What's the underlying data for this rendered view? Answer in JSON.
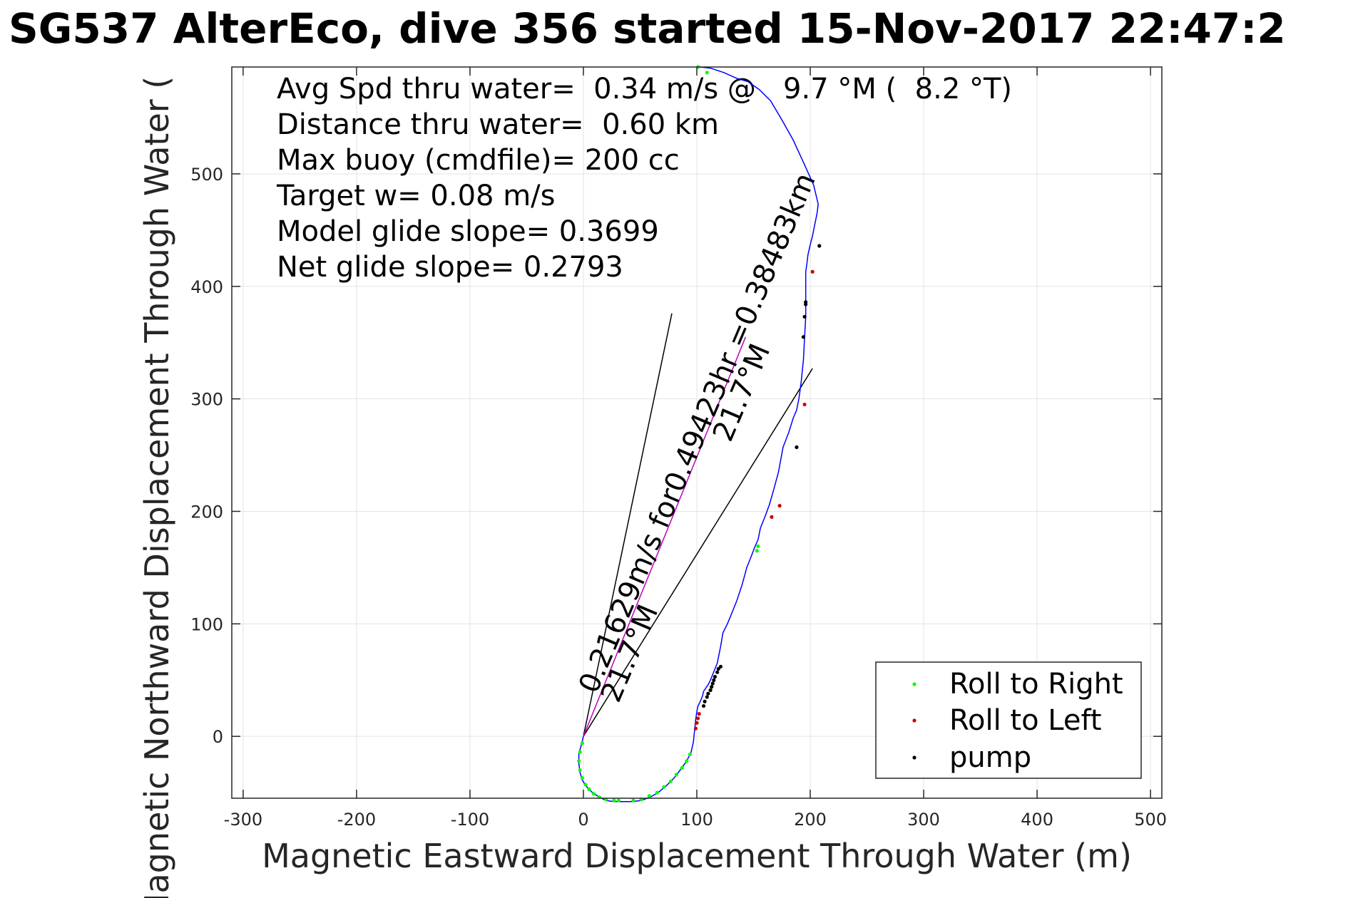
{
  "chart_data": {
    "type": "scatter",
    "title": "SG537 AlterEco, dive 356 started 15-Nov-2017 22:47:2",
    "xlabel": "Magnetic Eastward Displacement Through Water (m)",
    "ylabel": "Magnetic Northward Displacement Through Water (",
    "xlim": [
      -310,
      510
    ],
    "ylim": [
      -55,
      595
    ],
    "xticks": [
      -300,
      -200,
      -100,
      0,
      100,
      200,
      300,
      400,
      500
    ],
    "xtick_labels": [
      "-300",
      "-200",
      "-100",
      "0",
      "100",
      "200",
      "300",
      "400",
      "500"
    ],
    "yticks": [
      0,
      100,
      200,
      300,
      400,
      500
    ],
    "ytick_labels": [
      "0",
      "100",
      "200",
      "300",
      "400",
      "500"
    ],
    "grid": true,
    "legend_position": "bottom-right",
    "annotations": [
      "Avg Spd thru water=  0.34 m/s @   9.7 °M (  8.2 °T)",
      "Distance thru water=  0.60 km",
      "Max buoy (cmdfile)= 200 cc",
      "Target w= 0.08 m/s",
      "Model glide slope= 0.3699",
      "Net glide slope= 0.2793"
    ],
    "rotated_labels": {
      "current_label": "0.21629m/s for0.49423hr =0.38483km",
      "heading_upper": "21.7°M",
      "heading_lower": "21.7°M"
    },
    "current_vector": {
      "x": [
        0,
        143
      ],
      "y": [
        0,
        355
      ],
      "color": "#c000c0"
    },
    "wedge_lines": [
      {
        "x": [
          0,
          78
        ],
        "y": [
          0,
          376
        ],
        "color": "#000000"
      },
      {
        "x": [
          0,
          202
        ],
        "y": [
          0,
          327
        ],
        "color": "#000000"
      }
    ],
    "track": {
      "name": "track",
      "color": "#0000ff",
      "x": [
        0,
        -2,
        -4,
        -4,
        -3,
        -1,
        3,
        8,
        14,
        20,
        27,
        35,
        43,
        51,
        59,
        66,
        73,
        80,
        86,
        91,
        95,
        97,
        98,
        99,
        100,
        101,
        103,
        105,
        106,
        108,
        110,
        112,
        114,
        116,
        118,
        119,
        121,
        123,
        127,
        131,
        135,
        140,
        144,
        148,
        151,
        154,
        156,
        160,
        164,
        168,
        172,
        176,
        181,
        185,
        188,
        190,
        192,
        194,
        195,
        196,
        196,
        196,
        196,
        197,
        198,
        200,
        202,
        204,
        206,
        207,
        203,
        195,
        185,
        175,
        165,
        155,
        145,
        135,
        124,
        112,
        103,
        101
      ],
      "y": [
        0,
        -8,
        -16,
        -24,
        -32,
        -39,
        -45,
        -50,
        -54,
        -57,
        -58,
        -58,
        -58,
        -57,
        -54,
        -50,
        -44,
        -37,
        -29,
        -22,
        -14,
        -5,
        5,
        15,
        22,
        27,
        31,
        36,
        40,
        43,
        46,
        50,
        55,
        60,
        65,
        70,
        80,
        92,
        100,
        110,
        120,
        135,
        150,
        160,
        168,
        175,
        185,
        195,
        206,
        220,
        235,
        257,
        270,
        283,
        290,
        300,
        315,
        335,
        355,
        373,
        385,
        400,
        413,
        420,
        428,
        437,
        445,
        455,
        465,
        473,
        490,
        508,
        530,
        548,
        565,
        575,
        582,
        585,
        590,
        594,
        595,
        595
      ]
    },
    "series": [
      {
        "name": "Roll to Right",
        "color": "#00ff00",
        "x": [
          -1,
          -3,
          -4,
          -3,
          -1,
          2,
          5,
          9,
          14,
          20,
          27,
          31,
          44,
          51,
          58,
          65,
          71,
          77,
          82,
          87,
          91,
          94,
          153,
          154,
          101,
          109
        ],
        "y": [
          -6,
          -14,
          -22,
          -30,
          -37,
          -43,
          -47,
          -51,
          -54,
          -56,
          -57,
          -57,
          -57,
          -56,
          -53,
          -50,
          -45,
          -40,
          -34,
          -28,
          -22,
          -16,
          165,
          169,
          595,
          590
        ]
      },
      {
        "name": "Roll to Left",
        "color": "#cc0000",
        "x": [
          99,
          100,
          101,
          102,
          166,
          173,
          202,
          195
        ],
        "y": [
          7,
          12,
          16,
          20,
          195,
          205,
          413,
          295
        ]
      },
      {
        "name": "pump",
        "color": "#000000",
        "x": [
          106,
          107,
          109,
          110,
          112,
          113,
          114,
          115,
          116,
          118,
          119,
          121,
          188,
          194,
          195,
          196,
          196,
          208
        ],
        "y": [
          27,
          31,
          35,
          38,
          41,
          44,
          47,
          50,
          53,
          57,
          60,
          62,
          257,
          355,
          373,
          384,
          386,
          436
        ]
      }
    ]
  }
}
